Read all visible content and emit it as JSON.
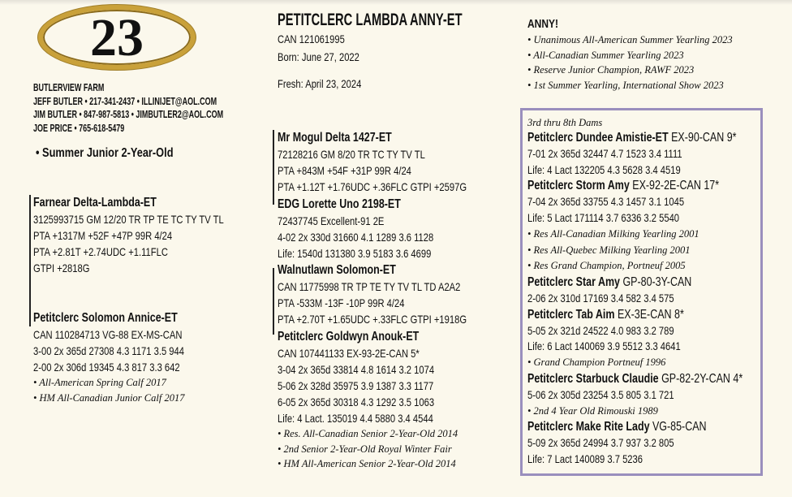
{
  "lot": {
    "number": "23"
  },
  "consignor": {
    "farm": "BUTLERVIEW FARM",
    "contacts": [
      "JEFF BUTLER • 217-341-2437 • ILLINIJET@AOL.COM",
      "JIM BUTLER • 847-987-5813 • JIMBUTLER2@AOL.COM",
      "JOE PRICE • 765-618-5479"
    ]
  },
  "class_label": "• Summer Junior 2-Year-Old",
  "animal": {
    "name": "PETITCLERC LAMBDA ANNY-ET",
    "reg": "CAN 121061995",
    "born": "Born: June 27, 2022",
    "fresh": "Fresh: April 23, 2024"
  },
  "highlights": {
    "heading": "ANNY!",
    "items": [
      "• Unanimous All-American Summer Yearling 2023",
      "• All-Canadian Summer Yearling 2023",
      "• Reserve Junior Champion, RAWF 2023",
      "• 1st Summer Yearling, International Show 2023"
    ]
  },
  "sire": {
    "name": "Farnear Delta-Lambda-ET",
    "lines": [
      "3125993715  GM 12/20  TR TP TE TC TY TV TL",
      "PTA +1317M +52F +47P 99R 4/24",
      "PTA +2.81T +2.74UDC +1.11FLC",
      "GTPI +2818G"
    ]
  },
  "dam": {
    "name": "Petitclerc Solomon Annice-ET",
    "lines": [
      "CAN 110284713  VG-88 EX-MS-CAN",
      "3-00  2x  365d  27308  4.3  1171  3.5  944",
      "2-00  2x  306d  19345  4.3    817  3.3  642"
    ],
    "awards": [
      "• All-American Spring Calf 2017",
      "• HM All-Canadian Junior Calf 2017"
    ]
  },
  "sire_sire": {
    "name": "Mr Mogul Delta 1427-ET",
    "lines": [
      "72128216   GM 8/20  TR TC TY TV TL",
      "PTA +843M +54F +31P 99R 4/24",
      "PTA +1.12T +1.76UDC +.36FLC  GTPI +2597G"
    ]
  },
  "sire_dam": {
    "name": "EDG Lorette Uno 2198-ET",
    "lines": [
      "72437745   Excellent-91 2E",
      "4-02  2x  330d  31660  4.1  1289  3.6  1128",
      "Life:   1540d   131380  3.9  5183  3.6  4699"
    ]
  },
  "dam_sire": {
    "name": "Walnutlawn Solomon-ET",
    "lines": [
      "CAN 11775998 TR TP TE TY TV TL TD  A2A2",
      "PTA -533M -13F -10P 99R 4/24",
      "PTA +2.70T +1.65UDC +.33FLC  GTPI +1918G"
    ]
  },
  "dam_dam": {
    "name": "Petitclerc Goldwyn Anouk-ET",
    "lines": [
      "CAN 107441133  EX-93-2E-CAN  5*",
      "3-04  2x  365d  33814  4.8  1614  3.2  1074",
      "5-06  2x  328d  35975  3.9  1387  3.3  1177",
      "6-05  2x  365d  30318  4.3  1292  3.5  1063",
      "Life:   4 Lact.   135019  4.4  5880  3.4  4544"
    ],
    "awards": [
      "• Res. All-Canadian Senior 2-Year-Old 2014",
      "• 2nd Senior 2-Year-Old Royal Winter Fair",
      "• HM All-American Senior 2-Year-Old 2014"
    ]
  },
  "dams_box": {
    "heading": "3rd thru 8th Dams",
    "dams": [
      {
        "name": "Petitclerc Dundee Amistie-ET",
        "rating": " EX-90-CAN  9*",
        "lines": [
          "7-01  2x  365d  32447  4.7  1523  3.4  1111",
          "Life:   4 Lact   132205  4.3   5628  3.4  4519"
        ],
        "awards": []
      },
      {
        "name": "Petitclerc Storm Amy",
        "rating": " EX-92-2E-CAN  17*",
        "lines": [
          "7-04  2x  365d  33755  4.3  1457  3.1  1045",
          "Life:   5 Lact   171114  3.7  6336  3.2  5540"
        ],
        "awards": [
          "• Res All-Canadian Milking Yearling 2001",
          "• Res All-Quebec Milking Yearling 2001",
          "• Res Grand Champion, Portneuf 2005"
        ]
      },
      {
        "name": "Petitclerc Star Amy",
        "rating": " GP-80-3Y-CAN",
        "lines": [
          "2-06  2x  310d  17169  3.4  582  3.4  575"
        ],
        "awards": []
      },
      {
        "name": "Petitclerc Tab Aim",
        "rating": " EX-3E-CAN  8*",
        "lines": [
          "5-05  2x  321d  24522  4.0    983  3.2   789",
          "Life:   6 Lact   140069  3.9  5512  3.3  4641"
        ],
        "awards": [
          "• Grand Champion Portneuf 1996"
        ]
      },
      {
        "name": "Petitclerc Starbuck Claudie",
        "rating": " GP-82-2Y-CAN  4*",
        "lines": [
          "5-06  2x  305d  23254  3.5  805  3.1  721"
        ],
        "awards": [
          "• 2nd 4 Year Old Rimouski 1989"
        ]
      },
      {
        "name": "Petitclerc Make Rite Lady",
        "rating": " VG-85-CAN",
        "lines": [
          "5-09  2x  365d  24994  3.7    937  3.2  805",
          "Life:  7 Lact    140089   3.7  5236"
        ],
        "awards": []
      }
    ]
  },
  "colors": {
    "background": "#fbf8ec",
    "box_border": "#9a8fbd",
    "oval_gold": "#c9a13a"
  }
}
